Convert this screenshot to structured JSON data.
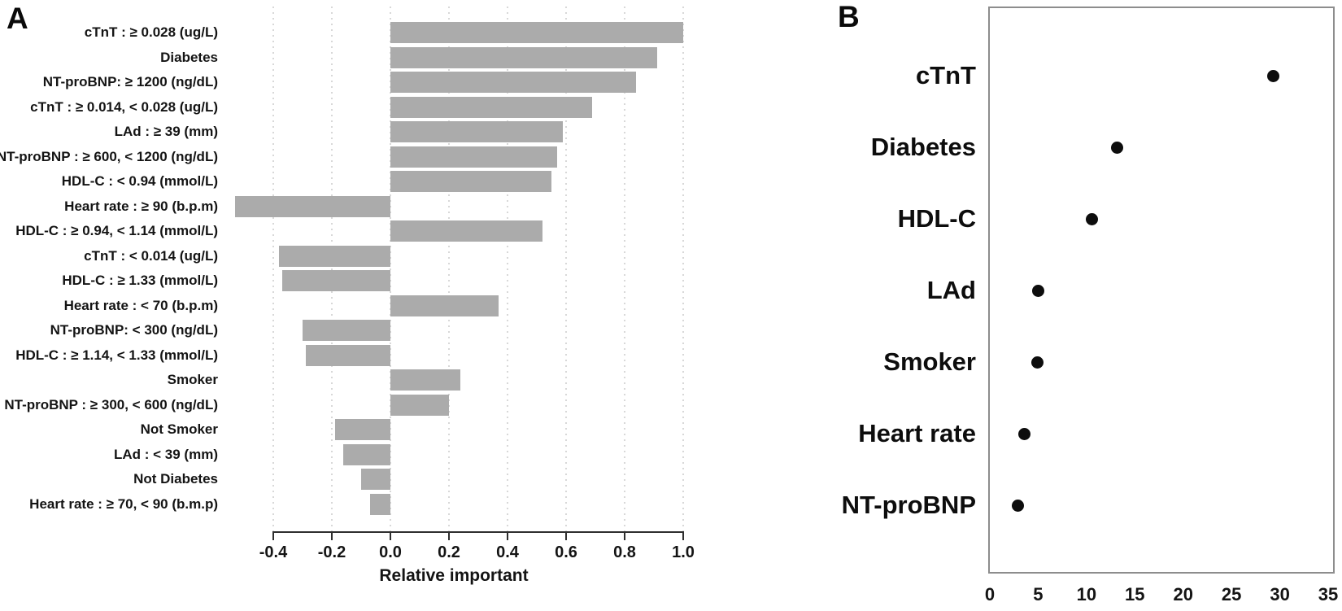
{
  "chart_data": [
    {
      "panel_label": "A",
      "type": "bar",
      "orientation": "horizontal",
      "xlabel": "Relative important",
      "xlim": [
        -0.4,
        1.0
      ],
      "tick_values": [
        -0.4,
        -0.2,
        0.0,
        0.2,
        0.4,
        0.6,
        0.8,
        1.0
      ],
      "tick_labels": [
        "-0.4",
        "-0.2",
        "0.0",
        "0.2",
        "0.4",
        "0.6",
        "0.8",
        "1.0"
      ],
      "grid": "dotted-vertical",
      "bar_color": "#ababab",
      "categories": [
        "cTnT : ≥ 0.028 (ug/L)",
        "Diabetes",
        "NT-proBNP: ≥ 1200 (ng/dL)",
        "cTnT : ≥ 0.014, < 0.028 (ug/L)",
        "LAd : ≥ 39 (mm)",
        "NT-proBNP : ≥ 600, < 1200 (ng/dL)",
        "HDL-C : < 0.94 (mmol/L)",
        "Heart rate : ≥ 90 (b.p.m)",
        "HDL-C : ≥ 0.94, < 1.14 (mmol/L)",
        "cTnT : < 0.014 (ug/L)",
        "HDL-C : ≥ 1.33 (mmol/L)",
        "Heart rate : < 70 (b.p.m)",
        "NT-proBNP: < 300 (ng/dL)",
        "HDL-C : ≥ 1.14, < 1.33 (mmol/L)",
        "Smoker",
        "NT-proBNP : ≥ 300, < 600 (ng/dL)",
        "Not Smoker",
        "LAd : < 39 (mm)",
        "Not Diabetes",
        "Heart rate : ≥ 70, < 90 (b.m.p)"
      ],
      "values": [
        1.0,
        0.91,
        0.84,
        0.69,
        0.59,
        0.57,
        0.55,
        -0.53,
        0.52,
        -0.38,
        -0.37,
        0.37,
        -0.3,
        -0.29,
        0.24,
        0.2,
        -0.19,
        -0.16,
        -0.1,
        -0.07
      ]
    },
    {
      "panel_label": "B",
      "type": "scatter",
      "subtype": "dot-plot",
      "xlim": [
        0,
        35.5
      ],
      "tick_values": [
        0,
        5,
        10,
        15,
        20,
        25,
        30,
        35
      ],
      "tick_labels": [
        "0",
        "5",
        "10",
        "15",
        "20",
        "25",
        "30",
        "35"
      ],
      "grid": "none",
      "dot_color": "#0d0d0d",
      "categories": [
        "cTnT",
        "Diabetes",
        "HDL-C",
        "LAd",
        "Smoker",
        "Heart rate",
        "NT-proBNP"
      ],
      "values": [
        29.3,
        13.2,
        10.6,
        5.0,
        4.9,
        3.6,
        2.9
      ]
    }
  ]
}
